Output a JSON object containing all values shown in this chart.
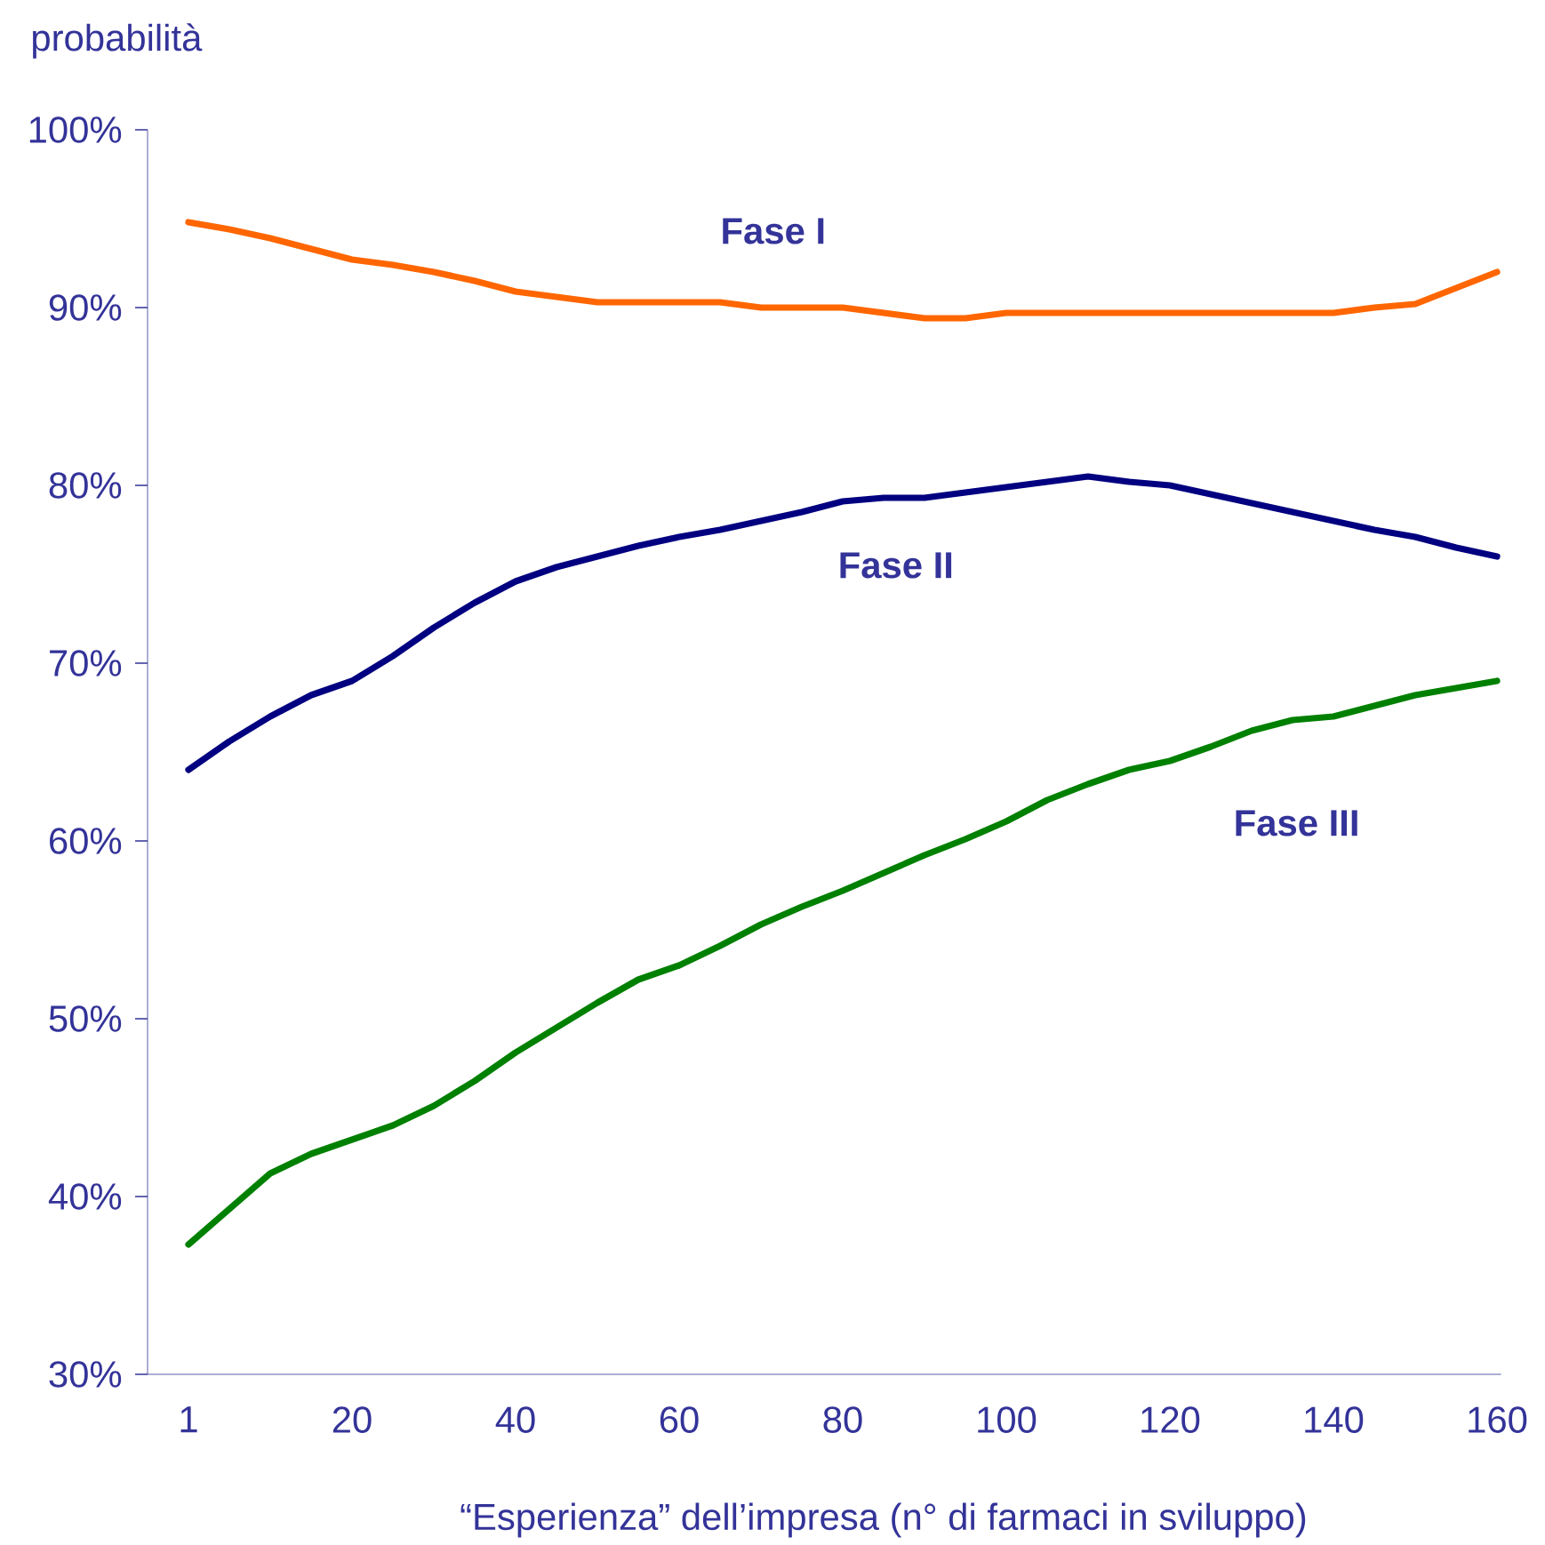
{
  "chart_data": {
    "type": "line",
    "ylabel": "probabilità",
    "xlabel": "“Esperienza” dell’impresa (n° di farmaci in sviluppo)",
    "categories": [
      "1",
      null,
      null,
      null,
      "20",
      null,
      null,
      null,
      "40",
      null,
      null,
      null,
      "60",
      null,
      null,
      null,
      "80",
      null,
      null,
      null,
      "100",
      null,
      null,
      null,
      "120",
      null,
      null,
      null,
      "140",
      null,
      null,
      null,
      "160"
    ],
    "ylim": [
      30,
      100
    ],
    "yticks": [
      {
        "value": 30,
        "label": "30%"
      },
      {
        "value": 40,
        "label": "40%"
      },
      {
        "value": 50,
        "label": "50%"
      },
      {
        "value": 60,
        "label": "60%"
      },
      {
        "value": 70,
        "label": "70%"
      },
      {
        "value": 80,
        "label": "80%"
      },
      {
        "value": 90,
        "label": "90%"
      },
      {
        "value": 100,
        "label": "100%"
      }
    ],
    "grid": false,
    "legend": false,
    "marker": "none",
    "line_style": "solid",
    "series": [
      {
        "name": "Fase I",
        "color": "#ff6600",
        "values": [
          94.8,
          94.4,
          93.9,
          93.3,
          92.7,
          92.4,
          92.0,
          91.5,
          90.9,
          90.6,
          90.3,
          90.3,
          90.3,
          90.3,
          90.0,
          90.0,
          90.0,
          89.7,
          89.4,
          89.4,
          89.7,
          89.7,
          89.7,
          89.7,
          89.7,
          89.7,
          89.7,
          89.7,
          89.7,
          90.0,
          90.2,
          91.1,
          92.0
        ]
      },
      {
        "name": "Fase II",
        "color": "#000080",
        "values": [
          64.0,
          65.6,
          67.0,
          68.2,
          69.0,
          70.4,
          72.0,
          73.4,
          74.6,
          75.4,
          76.0,
          76.6,
          77.1,
          77.5,
          78.0,
          78.5,
          79.1,
          79.3,
          79.3,
          79.6,
          79.9,
          80.2,
          80.5,
          80.2,
          80.0,
          79.5,
          79.0,
          78.5,
          78.0,
          77.5,
          77.1,
          76.5,
          76.0
        ]
      },
      {
        "name": "Fase III",
        "color": "#008000",
        "values": [
          37.3,
          39.3,
          41.3,
          42.4,
          43.2,
          44.0,
          45.1,
          46.5,
          48.1,
          49.5,
          50.9,
          52.2,
          53.0,
          54.1,
          55.3,
          56.3,
          57.2,
          58.2,
          59.2,
          60.1,
          61.1,
          62.3,
          63.2,
          64.0,
          64.5,
          65.3,
          66.2,
          66.8,
          67.0,
          67.6,
          68.2,
          68.6,
          69.0
        ]
      }
    ]
  }
}
